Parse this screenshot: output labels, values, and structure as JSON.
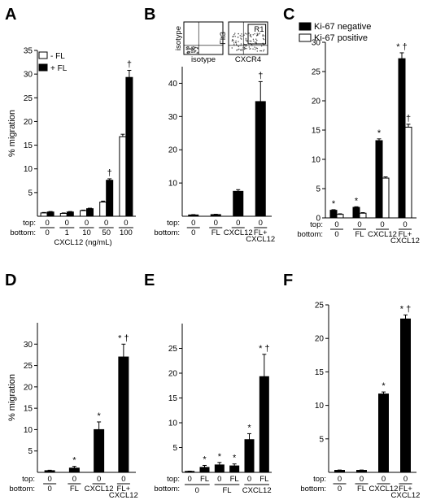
{
  "chart_data": [
    {
      "panel": "A",
      "type": "bar",
      "ylabel": "% migration",
      "ylim": [
        0,
        35
      ],
      "yticks": [
        5,
        10,
        15,
        20,
        25,
        30,
        35
      ],
      "legend": [
        "- FL",
        "+ FL"
      ],
      "row_labels": [
        "top:",
        "bottom:"
      ],
      "xlabel": "CXCL12 (ng/mL)",
      "groups": [
        {
          "top": "0",
          "bottom": "0",
          "values": [
            0.7,
            0.9
          ],
          "errors": [
            0.1,
            0.1
          ],
          "marks": [
            "",
            ""
          ]
        },
        {
          "top": "0",
          "bottom": "1",
          "values": [
            0.6,
            0.9
          ],
          "errors": [
            0.1,
            0.1
          ],
          "marks": [
            "",
            ""
          ]
        },
        {
          "top": "0",
          "bottom": "10",
          "values": [
            1.2,
            1.6
          ],
          "errors": [
            0.1,
            0.1
          ],
          "marks": [
            "",
            ""
          ]
        },
        {
          "top": "0",
          "bottom": "50",
          "values": [
            3.0,
            7.6
          ],
          "errors": [
            0.2,
            0.3
          ],
          "marks": [
            "",
            "†"
          ]
        },
        {
          "top": "0",
          "bottom": "100",
          "values": [
            16.8,
            29.3
          ],
          "errors": [
            0.5,
            1.5
          ],
          "marks": [
            "",
            "†"
          ]
        }
      ]
    },
    {
      "panel": "B",
      "type": "bar",
      "ylim": [
        0,
        45
      ],
      "yticks": [
        10,
        20,
        30,
        40
      ],
      "row_labels": [
        "top:",
        "bottom:"
      ],
      "groups": [
        {
          "top": "0",
          "bottom": "0",
          "value": 0.4,
          "error": 0.1,
          "mark": ""
        },
        {
          "top": "0",
          "bottom": "FL",
          "value": 0.5,
          "error": 0.1,
          "mark": ""
        },
        {
          "top": "0",
          "bottom": "CXCL12",
          "value": 7.5,
          "error": 0.5,
          "mark": ""
        },
        {
          "top": "0",
          "bottom": "FL+ CXCL12",
          "value": 34.5,
          "error": 6.0,
          "mark": "†"
        }
      ],
      "insets": [
        {
          "xlabel": "isotype",
          "ylabel": "isotype"
        },
        {
          "xlabel": "CXCR4",
          "ylabel": "Flt3",
          "gate": "R1"
        }
      ]
    },
    {
      "panel": "C",
      "type": "bar",
      "ylim": [
        0,
        30
      ],
      "yticks": [
        0,
        5,
        10,
        15,
        20,
        25,
        30
      ],
      "legend": [
        "Ki-67 negative",
        "Ki-67 positive"
      ],
      "row_labels": [
        "top:",
        "bottom:"
      ],
      "groups": [
        {
          "top": "0",
          "bottom": "0",
          "values": [
            1.3,
            0.6
          ],
          "errors": [
            0.1,
            0.1
          ],
          "marks": [
            "*",
            ""
          ]
        },
        {
          "top": "0",
          "bottom": "FL",
          "values": [
            1.8,
            0.8
          ],
          "errors": [
            0.1,
            0.1
          ],
          "marks": [
            "*",
            ""
          ]
        },
        {
          "top": "0",
          "bottom": "CXCL12",
          "values": [
            13.2,
            6.8
          ],
          "errors": [
            0.3,
            0.2
          ],
          "marks": [
            "*",
            ""
          ]
        },
        {
          "top": "0",
          "bottom": "FL+ CXCL12",
          "values": [
            27.2,
            15.5
          ],
          "errors": [
            1.0,
            0.5
          ],
          "marks": [
            "* †",
            "†"
          ]
        }
      ]
    },
    {
      "panel": "D",
      "type": "bar",
      "ylabel": "% migration",
      "ylim": [
        0,
        35
      ],
      "yticks": [
        5,
        10,
        15,
        20,
        25,
        30
      ],
      "row_labels": [
        "top:",
        "bottom:"
      ],
      "groups": [
        {
          "top": "0",
          "bottom": "0",
          "value": 0.4,
          "error": 0.1,
          "mark": ""
        },
        {
          "top": "0",
          "bottom": "FL",
          "value": 1.0,
          "error": 0.4,
          "mark": "*"
        },
        {
          "top": "0",
          "bottom": "CXCL12",
          "value": 10.0,
          "error": 1.8,
          "mark": "*"
        },
        {
          "top": "0",
          "bottom": "FL+ CXCL12",
          "value": 27.0,
          "error": 3.0,
          "mark": "* †"
        }
      ]
    },
    {
      "panel": "E",
      "type": "bar",
      "ylim": [
        0,
        30
      ],
      "yticks": [
        5,
        10,
        15,
        20,
        25
      ],
      "row_labels": [
        "top:",
        "bottom:"
      ],
      "bottom_groups": [
        "0",
        "FL",
        "CXCL12"
      ],
      "groups": [
        {
          "top": "0",
          "bottom": "0",
          "value": 0.2,
          "error": 0.05,
          "mark": ""
        },
        {
          "top": "FL",
          "bottom": "0",
          "value": 1.0,
          "error": 0.4,
          "mark": "*"
        },
        {
          "top": "0",
          "bottom": "FL",
          "value": 1.5,
          "error": 0.5,
          "mark": "*"
        },
        {
          "top": "FL",
          "bottom": "FL",
          "value": 1.3,
          "error": 0.4,
          "mark": "*"
        },
        {
          "top": "0",
          "bottom": "CXCL12",
          "value": 6.6,
          "error": 1.2,
          "mark": "*"
        },
        {
          "top": "FL",
          "bottom": "CXCL12",
          "value": 19.3,
          "error": 4.5,
          "mark": "* †"
        }
      ]
    },
    {
      "panel": "F",
      "type": "bar",
      "ylim": [
        0,
        25
      ],
      "yticks": [
        5,
        10,
        15,
        20,
        25
      ],
      "row_labels": [
        "top:",
        "bottom:"
      ],
      "groups": [
        {
          "top": "0",
          "bottom": "0",
          "value": 0.3,
          "error": 0.05,
          "mark": ""
        },
        {
          "top": "0",
          "bottom": "FL",
          "value": 0.3,
          "error": 0.05,
          "mark": ""
        },
        {
          "top": "0",
          "bottom": "CXCL12",
          "value": 11.7,
          "error": 0.3,
          "mark": "*"
        },
        {
          "top": "0",
          "bottom": "FL+ CXCL12",
          "value": 22.9,
          "error": 0.6,
          "mark": "* †"
        }
      ]
    }
  ]
}
